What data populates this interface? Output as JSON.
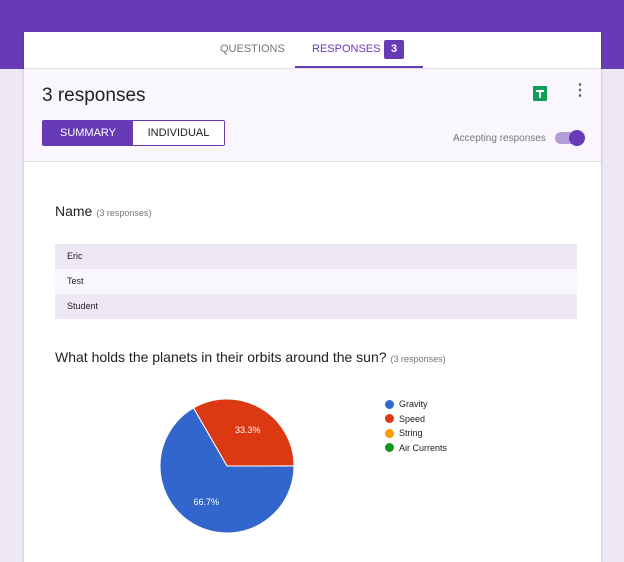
{
  "tabs": {
    "questions": "QUESTIONS",
    "responses": "RESPONSES",
    "responses_count": "3"
  },
  "header": {
    "title": "3 responses",
    "summary": "SUMMARY",
    "individual": "INDIVIDUAL",
    "accepting": "Accepting responses",
    "accepting_on": true
  },
  "questions": [
    {
      "title": "Name",
      "count": "(3 responses)",
      "answers": [
        "Eric",
        "Test",
        "Student"
      ]
    },
    {
      "title": "What holds the planets in their orbits around the sun?",
      "count": "(3 responses)"
    }
  ],
  "chart_data": {
    "type": "pie",
    "categories": [
      "Gravity",
      "Speed",
      "String",
      "Air Currents"
    ],
    "values": [
      66.7,
      33.3,
      0,
      0
    ],
    "labels": [
      "66.7%",
      "33.3%",
      "",
      ""
    ],
    "colors": [
      "#3366cc",
      "#dc3912",
      "#ff9900",
      "#109618"
    ],
    "legend_placement": "right"
  },
  "colors": {
    "accent": "#673ab7"
  }
}
